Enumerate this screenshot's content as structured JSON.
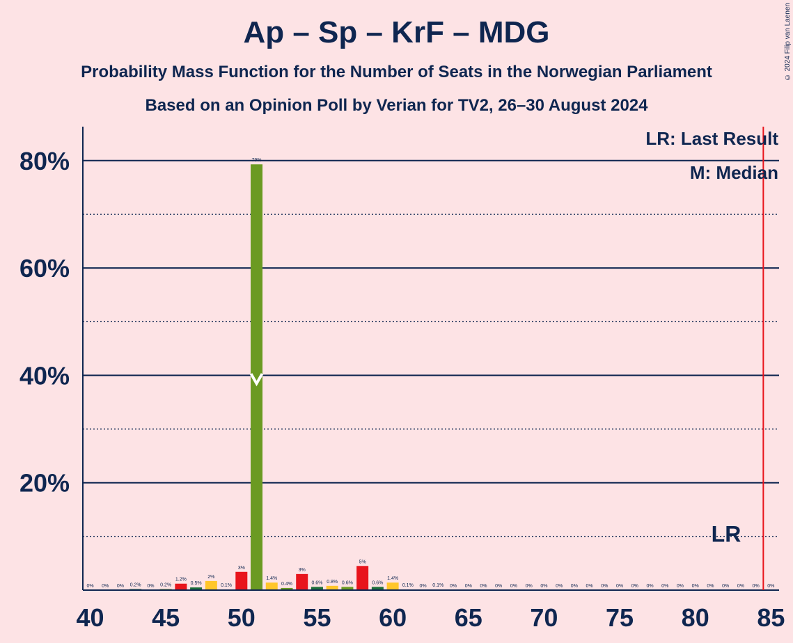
{
  "title": "Ap – Sp – KrF – MDG",
  "subtitle1": "Probability Mass Function for the Number of Seats in the Norwegian Parliament",
  "subtitle2": "Based on an Opinion Poll by Verian for TV2, 26–30 August 2024",
  "copyright": "© 2024 Filip van Laenen",
  "legend": {
    "last_result": "LR: Last Result",
    "median": "M: Median"
  },
  "colors": {
    "background": "#fde3e5",
    "text": "#0f2650",
    "last_result_line": "#e8141c",
    "median_bar": "#6b9a22",
    "palette": [
      "#ffc62a",
      "#6b9a22",
      "#e8141c",
      "#1b6e3a"
    ]
  },
  "chart_data": {
    "type": "bar",
    "xlabel": "",
    "ylabel": "",
    "xlim": [
      40,
      85
    ],
    "ylim": [
      0,
      0.85
    ],
    "x_ticks": [
      40,
      45,
      50,
      55,
      60,
      65,
      70,
      75,
      80,
      85
    ],
    "y_ticks_major": [
      {
        "value": 0.2,
        "label": "20%"
      },
      {
        "value": 0.4,
        "label": "40%"
      },
      {
        "value": 0.6,
        "label": "60%"
      },
      {
        "value": 0.8,
        "label": "80%"
      }
    ],
    "y_ticks_minor": [
      0.1,
      0.3,
      0.5,
      0.7
    ],
    "median": 51,
    "median_marker": "M",
    "last_result": 85,
    "last_result_marker": "LR",
    "bars": [
      {
        "seats": 40,
        "value": 0.0,
        "label": "0%"
      },
      {
        "seats": 41,
        "value": 0.0,
        "label": "0%"
      },
      {
        "seats": 42,
        "value": 0.0,
        "label": "0%"
      },
      {
        "seats": 43,
        "value": 0.002,
        "label": "0.2%"
      },
      {
        "seats": 44,
        "value": 0.0,
        "label": "0%"
      },
      {
        "seats": 45,
        "value": 0.002,
        "label": "0.2%"
      },
      {
        "seats": 46,
        "value": 0.012,
        "label": "1.2%"
      },
      {
        "seats": 47,
        "value": 0.005,
        "label": "0.5%"
      },
      {
        "seats": 48,
        "value": 0.017,
        "label": "2%"
      },
      {
        "seats": 49,
        "value": 0.001,
        "label": "0.1%"
      },
      {
        "seats": 50,
        "value": 0.034,
        "label": "3%"
      },
      {
        "seats": 51,
        "value": 0.793,
        "label": "79%"
      },
      {
        "seats": 52,
        "value": 0.014,
        "label": "1.4%"
      },
      {
        "seats": 53,
        "value": 0.004,
        "label": "0.4%"
      },
      {
        "seats": 54,
        "value": 0.03,
        "label": "3%"
      },
      {
        "seats": 55,
        "value": 0.006,
        "label": "0.6%"
      },
      {
        "seats": 56,
        "value": 0.008,
        "label": "0.8%"
      },
      {
        "seats": 57,
        "value": 0.006,
        "label": "0.6%"
      },
      {
        "seats": 58,
        "value": 0.045,
        "label": "5%"
      },
      {
        "seats": 59,
        "value": 0.006,
        "label": "0.6%"
      },
      {
        "seats": 60,
        "value": 0.014,
        "label": "1.4%"
      },
      {
        "seats": 61,
        "value": 0.001,
        "label": "0.1%"
      },
      {
        "seats": 62,
        "value": 0.0,
        "label": "0%"
      },
      {
        "seats": 63,
        "value": 0.001,
        "label": "0.1%"
      },
      {
        "seats": 64,
        "value": 0.0,
        "label": "0%"
      },
      {
        "seats": 65,
        "value": 0.0,
        "label": "0%"
      },
      {
        "seats": 66,
        "value": 0.0,
        "label": "0%"
      },
      {
        "seats": 67,
        "value": 0.0,
        "label": "0%"
      },
      {
        "seats": 68,
        "value": 0.0,
        "label": "0%"
      },
      {
        "seats": 69,
        "value": 0.0,
        "label": "0%"
      },
      {
        "seats": 70,
        "value": 0.0,
        "label": "0%"
      },
      {
        "seats": 71,
        "value": 0.0,
        "label": "0%"
      },
      {
        "seats": 72,
        "value": 0.0,
        "label": "0%"
      },
      {
        "seats": 73,
        "value": 0.0,
        "label": "0%"
      },
      {
        "seats": 74,
        "value": 0.0,
        "label": "0%"
      },
      {
        "seats": 75,
        "value": 0.0,
        "label": "0%"
      },
      {
        "seats": 76,
        "value": 0.0,
        "label": "0%"
      },
      {
        "seats": 77,
        "value": 0.0,
        "label": "0%"
      },
      {
        "seats": 78,
        "value": 0.0,
        "label": "0%"
      },
      {
        "seats": 79,
        "value": 0.0,
        "label": "0%"
      },
      {
        "seats": 80,
        "value": 0.0,
        "label": "0%"
      },
      {
        "seats": 81,
        "value": 0.0,
        "label": "0%"
      },
      {
        "seats": 82,
        "value": 0.0,
        "label": "0%"
      },
      {
        "seats": 83,
        "value": 0.0,
        "label": "0%"
      },
      {
        "seats": 84,
        "value": 0.0,
        "label": "0%"
      },
      {
        "seats": 85,
        "value": 0.0,
        "label": "0%"
      }
    ]
  }
}
